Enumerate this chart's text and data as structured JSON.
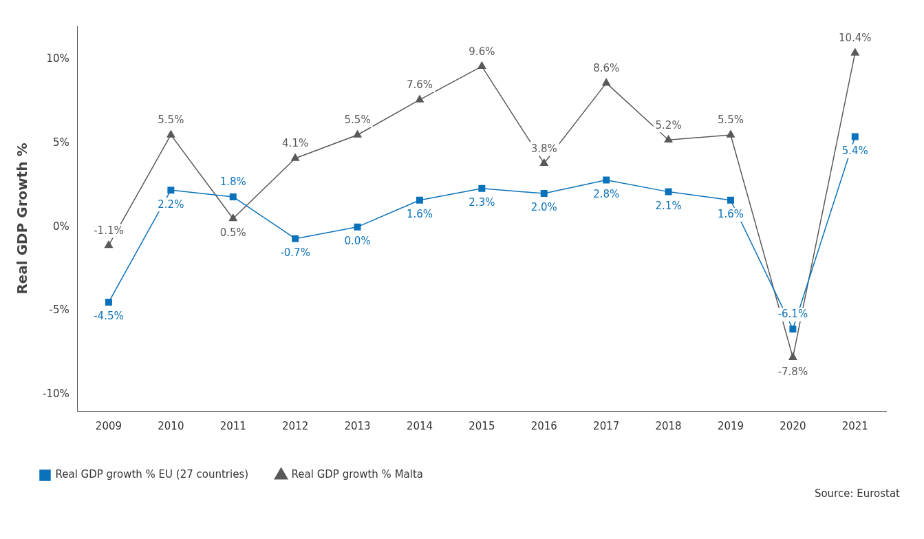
{
  "chart_data": {
    "type": "line",
    "ylabel": "Real GDP Growth %",
    "categories": [
      "2009",
      "2010",
      "2011",
      "2012",
      "2013",
      "2014",
      "2015",
      "2016",
      "2017",
      "2018",
      "2019",
      "2020",
      "2021"
    ],
    "series": [
      {
        "name": "Real GDP growth % EU (27 countries)",
        "color": "#0a72ba",
        "marker": "square",
        "values": [
          -4.5,
          2.2,
          1.8,
          -0.7,
          0.0,
          1.6,
          2.3,
          2.0,
          2.8,
          2.1,
          1.6,
          -6.1,
          5.4
        ],
        "value_labels": [
          "-4.5%",
          "2.2%",
          "1.8%",
          "-0.7%",
          "0.0%",
          "1.6%",
          "2.3%",
          "2.0%",
          "2.8%",
          "2.1%",
          "1.6%",
          "-6.1%",
          "5.4%"
        ]
      },
      {
        "name": "Real GDP growth % Malta",
        "color": "#595959",
        "marker": "triangle",
        "values": [
          -1.1,
          5.5,
          0.5,
          4.1,
          5.5,
          7.6,
          9.6,
          3.8,
          8.6,
          5.2,
          5.5,
          -7.8,
          10.4
        ],
        "value_labels": [
          "-1.1%",
          "5.5%",
          "0.5%",
          "4.1%",
          "5.5%",
          "7.6%",
          "9.6%",
          "3.8%",
          "8.6%",
          "5.2%",
          "5.5%",
          "-7.8%",
          "10.4%"
        ]
      }
    ],
    "ylim": [
      -11,
      12
    ],
    "yticks": [
      {
        "value": -10,
        "label": "-10%"
      },
      {
        "value": -5,
        "label": "-5%"
      },
      {
        "value": 0,
        "label": "0%"
      },
      {
        "value": 5,
        "label": "5%"
      },
      {
        "value": 10,
        "label": "10%"
      }
    ],
    "grid": false,
    "legend": "bottom left",
    "line_style": "solid",
    "annotations": [
      "Source: Eurostat"
    ]
  }
}
